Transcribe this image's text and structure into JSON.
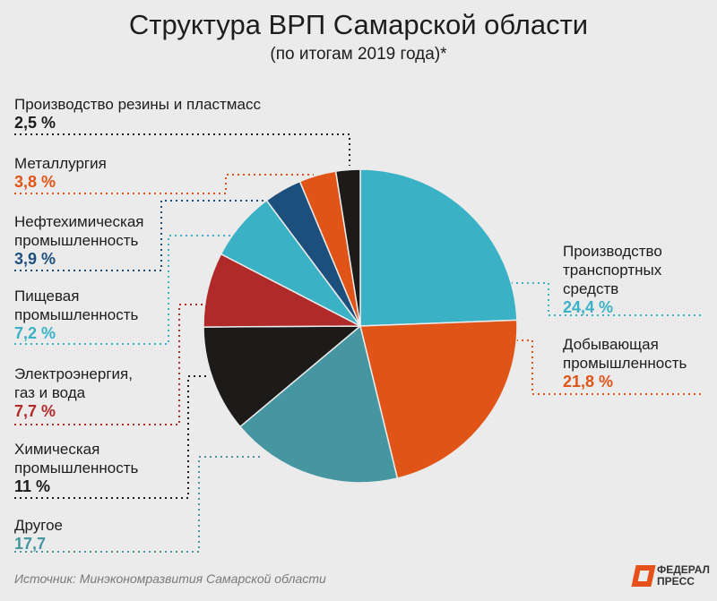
{
  "title": "Структура ВРП Самарской области",
  "subtitle": "(по итогам 2019 года)*",
  "source": "Источник: Минэкономразвития Самарской области",
  "logo": {
    "line1": "ФЕДЕРАЛ",
    "line2": "ПРЕСС"
  },
  "colors": {
    "transport": "#3bb1c6",
    "mining": "#e15418",
    "other": "#4596a0",
    "chemical": "#1d1a1a",
    "energy": "#b12a2a",
    "food": "#3bb1c6",
    "petrochem": "#1d4f7c",
    "metallurgy": "#e15418",
    "rubber": "#1d1a1a"
  },
  "chart_data": {
    "type": "pie",
    "title": "Структура ВРП Самарской области",
    "slices": [
      {
        "key": "transport",
        "label": "Производство транспортных средств",
        "value": 24.4,
        "value_text": "24,4 %"
      },
      {
        "key": "mining",
        "label": "Добывающая промышленность",
        "value": 21.8,
        "value_text": "21,8 %"
      },
      {
        "key": "other",
        "label": "Другое",
        "value": 17.7,
        "value_text": "17,7"
      },
      {
        "key": "chemical",
        "label": "Химическая промышленность",
        "value": 11,
        "value_text": "11 %"
      },
      {
        "key": "energy",
        "label": "Электроэнергия, газ и вода",
        "value": 7.7,
        "value_text": "7,7 %"
      },
      {
        "key": "food",
        "label": "Пищевая промышленность",
        "value": 7.2,
        "value_text": "7,2 %"
      },
      {
        "key": "petrochem",
        "label": "Нефтехимическая промышленность",
        "value": 3.9,
        "value_text": "3,9 %"
      },
      {
        "key": "metallurgy",
        "label": "Металлургия",
        "value": 3.8,
        "value_text": "3,8 %"
      },
      {
        "key": "rubber",
        "label": "Производство резины и пластмасс",
        "value": 2.5,
        "value_text": "2,5 %"
      }
    ]
  },
  "labels": {
    "rubber": {
      "line1": "Производство резины и пластмасс",
      "value": "2,5 %"
    },
    "metallurgy": {
      "line1": "Металлургия",
      "value": "3,8 %"
    },
    "petrochem": {
      "line1": "Нефтехимическая",
      "line2": "промышленность",
      "value": "3,9 %"
    },
    "food": {
      "line1": "Пищевая",
      "line2": "промышленность",
      "value": "7,2 %"
    },
    "energy": {
      "line1": "Электроэнергия,",
      "line2": "газ и вода",
      "value": "7,7 %"
    },
    "chemical": {
      "line1": "Химическая",
      "line2": "промышленность",
      "value": "11 %"
    },
    "other": {
      "line1": "Другое",
      "value": "17,7"
    },
    "transport": {
      "line1": "Производство",
      "line2": "транспортных",
      "line3": "средств",
      "value": "24,4 %"
    },
    "mining": {
      "line1": "Добывающая",
      "line2": "промышленность",
      "value": "21,8 %"
    }
  }
}
